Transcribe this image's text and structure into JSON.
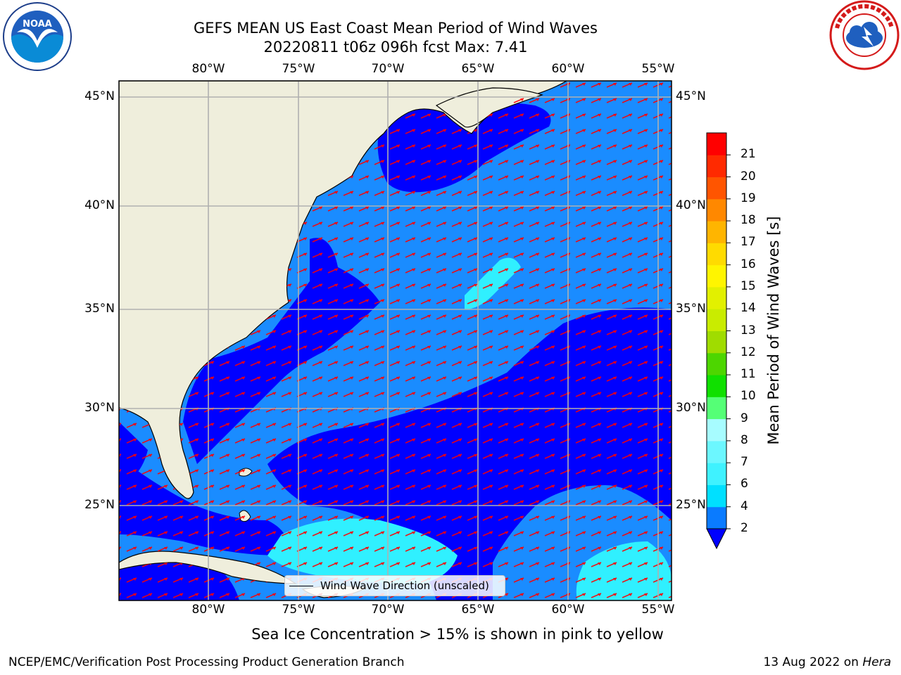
{
  "title": {
    "line1": "GEFS MEAN US East Coast Mean Period of Wind Waves",
    "line2": "20220811 t06z 096h fcst   Max: 7.41"
  },
  "logos": {
    "left": "noaa-logo",
    "right": "nws-logo"
  },
  "map": {
    "lon_ticks": [
      "80°W",
      "75°W",
      "70°W",
      "65°W",
      "60°W",
      "55°W"
    ],
    "lat_ticks": [
      "45°N",
      "40°N",
      "35°N",
      "30°N",
      "25°N"
    ],
    "land_color": "#efeedc",
    "gridline_color": "#b0b0b0",
    "arrow_color": "#ff0000",
    "coastline_color": "#000000"
  },
  "legend": {
    "label": "Wind Wave Direction (unscaled)"
  },
  "colorbar": {
    "label": "Mean Period of Wind Waves [s]",
    "ticks": [
      "2",
      "4",
      "6",
      "7",
      "8",
      "9",
      "10",
      "11",
      "12",
      "13",
      "14",
      "15",
      "16",
      "17",
      "18",
      "19",
      "20",
      "21"
    ],
    "colors": [
      "#0a7bff",
      "#00e0ff",
      "#3ff2ff",
      "#6cf7ff",
      "#a7fcff",
      "#55ff76",
      "#10e000",
      "#4dd600",
      "#a0dc00",
      "#c9ec00",
      "#e2f000",
      "#fff500",
      "#ffdb00",
      "#ffb500",
      "#ff8800",
      "#ff5500",
      "#ff2a00",
      "#ff0000"
    ],
    "extend_color": "#0000ff"
  },
  "notes": {
    "sea_ice": "Sea Ice Concentration > 15% is shown in pink to yellow"
  },
  "footer": {
    "left": "NCEP/EMC/Verification Post Processing Product Generation Branch",
    "date": "13 Aug 2022 on ",
    "machine": "Hera"
  }
}
